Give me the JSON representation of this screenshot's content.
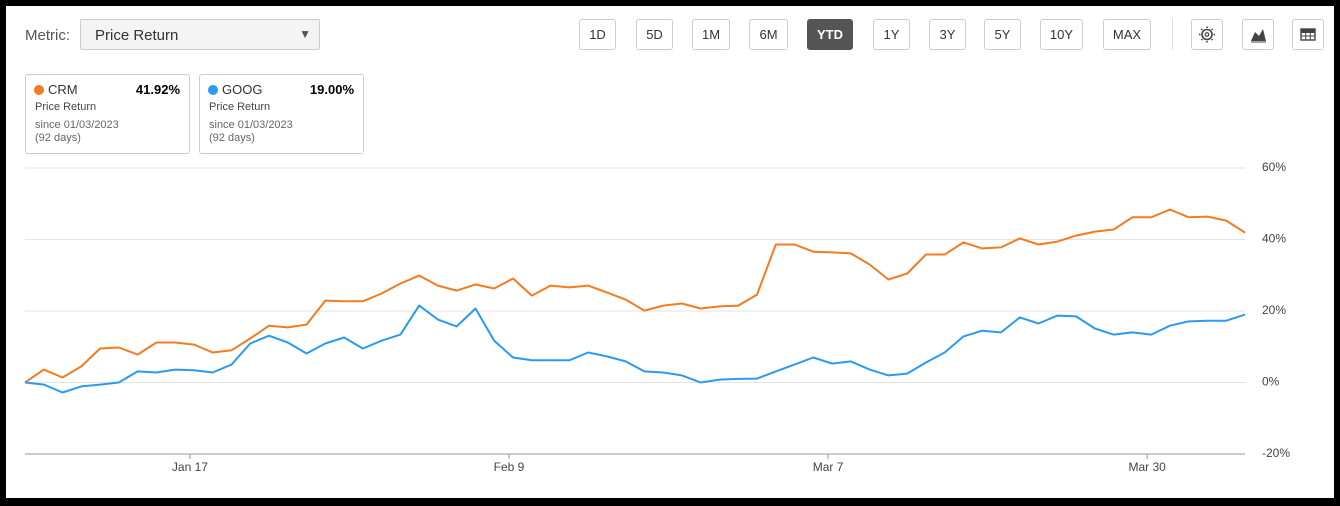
{
  "toolbar": {
    "metric_label": "Metric:",
    "metric": "Price Return",
    "ranges": [
      "1D",
      "5D",
      "1M",
      "6M",
      "YTD",
      "1Y",
      "3Y",
      "5Y",
      "10Y",
      "MAX"
    ],
    "active": "YTD"
  },
  "legend_note": {
    "metric": "Price Return",
    "since": "since 01/03/2023",
    "days": "(92 days)"
  },
  "chart_data": {
    "type": "line",
    "categories": [
      null,
      null,
      null,
      null,
      null,
      null,
      null,
      null,
      null,
      "Jan 17",
      null,
      null,
      null,
      null,
      null,
      null,
      null,
      null,
      null,
      null,
      null,
      null,
      null,
      null,
      null,
      null,
      "Feb 9",
      null,
      null,
      null,
      null,
      null,
      null,
      null,
      null,
      null,
      null,
      null,
      null,
      null,
      null,
      null,
      null,
      "Mar 7",
      null,
      null,
      null,
      null,
      null,
      null,
      null,
      null,
      null,
      null,
      null,
      null,
      null,
      null,
      null,
      null,
      "Mar 30",
      null,
      null,
      null,
      null,
      null
    ],
    "series": [
      {
        "name": "CRM",
        "color": "#f47b20",
        "values": [
          0,
          3.6,
          1.4,
          4.5,
          9.5,
          9.8,
          7.8,
          11.2,
          11.2,
          10.6,
          8.4,
          9,
          12.3,
          15.9,
          15.4,
          16.2,
          22.9,
          22.7,
          22.7,
          24.9,
          27.7,
          29.9,
          27.1,
          25.7,
          27.4,
          26.3,
          29.1,
          24.3,
          27.1,
          26.6,
          27.1,
          25.2,
          23.2,
          20.1,
          21.5,
          22.1,
          20.7,
          21.3,
          21.5,
          24.6,
          38.6,
          38.6,
          36.6,
          36.4,
          36.1,
          33,
          28.8,
          30.5,
          35.8,
          35.8,
          39.2,
          37.5,
          37.8,
          40.3,
          38.6,
          39.4,
          41.1,
          42.2,
          42.8,
          46.2,
          46.2,
          48.4,
          46.2,
          46.4,
          45.3,
          41.92
        ],
        "value_labels": [
          null,
          null,
          null,
          null,
          null,
          null,
          null,
          null,
          null,
          null,
          null,
          null,
          null,
          null,
          null,
          null,
          null,
          null,
          null,
          null,
          null,
          null,
          null,
          null,
          null,
          null,
          null,
          null,
          null,
          null,
          null,
          null,
          null,
          null,
          null,
          null,
          null,
          null,
          null,
          null,
          null,
          null,
          null,
          null,
          null,
          null,
          null,
          null,
          null,
          null,
          null,
          null,
          null,
          null,
          null,
          null,
          null,
          null,
          null,
          null,
          null,
          null,
          null,
          null,
          null,
          "41.92%"
        ]
      },
      {
        "name": "GOOG",
        "color": "#2b9af3",
        "values": [
          0,
          -0.6,
          -2.8,
          -1.1,
          -0.6,
          0,
          3.1,
          2.8,
          3.6,
          3.4,
          2.8,
          5,
          10.9,
          13.1,
          11.2,
          8.1,
          10.9,
          12.6,
          9.5,
          11.7,
          13.4,
          21.5,
          17.6,
          15.7,
          20.7,
          11.7,
          7,
          6.2,
          6.2,
          6.2,
          8.4,
          7.3,
          5.9,
          3.1,
          2.8,
          2,
          0,
          0.8,
          1,
          1.1,
          3.1,
          5,
          7,
          5.3,
          5.9,
          3.6,
          2,
          2.5,
          5.6,
          8.4,
          12.9,
          14.5,
          14,
          18.2,
          16.5,
          18.7,
          18.5,
          15.1,
          13.4,
          14,
          13.4,
          15.9,
          17.1,
          17.3,
          17.3,
          19.0
        ],
        "value_labels": [
          null,
          null,
          null,
          null,
          null,
          null,
          null,
          null,
          null,
          null,
          null,
          null,
          null,
          null,
          null,
          null,
          null,
          null,
          null,
          null,
          null,
          null,
          null,
          null,
          null,
          null,
          null,
          null,
          null,
          null,
          null,
          null,
          null,
          null,
          null,
          null,
          null,
          null,
          null,
          null,
          null,
          null,
          null,
          null,
          null,
          null,
          null,
          null,
          null,
          null,
          null,
          null,
          null,
          null,
          null,
          null,
          null,
          null,
          null,
          null,
          null,
          null,
          null,
          null,
          null,
          "19.00%"
        ]
      }
    ],
    "ylim": [
      -20,
      60
    ],
    "yticks": [
      {
        "value": -20,
        "label": "-20%"
      },
      {
        "value": 0,
        "label": "0%"
      },
      {
        "value": 20,
        "label": "20%"
      },
      {
        "value": 40,
        "label": "40%"
      },
      {
        "value": 60,
        "label": "60%"
      }
    ],
    "grid": true
  }
}
